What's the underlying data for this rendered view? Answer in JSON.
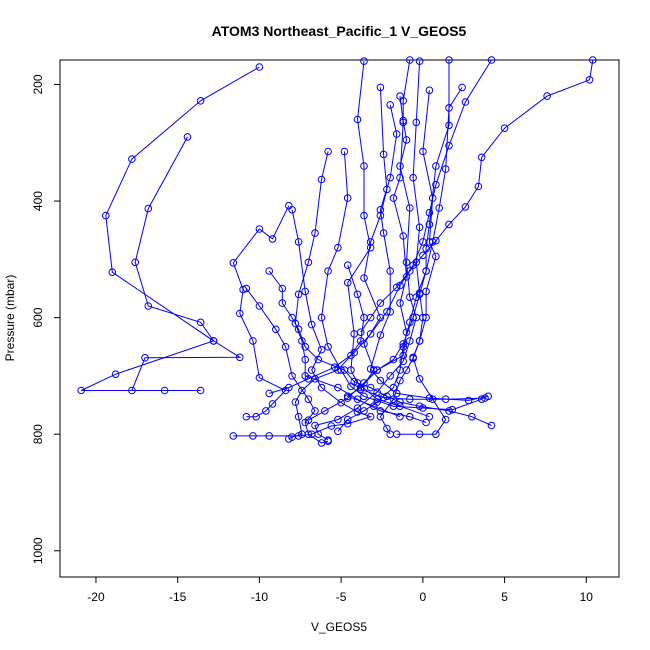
{
  "chart_data": {
    "type": "line",
    "title": "ATOM3 Northeast_Pacific_1 V_GEOS5",
    "xlabel": "V_GEOS5",
    "ylabel": "Pressure (mbar)",
    "xlim": [
      -22.2,
      12.0
    ],
    "ylim": [
      1045,
      158
    ],
    "y_reversed": true,
    "x_ticks": [
      -20,
      -15,
      -10,
      -5,
      0,
      5,
      10
    ],
    "y_ticks": [
      200,
      400,
      600,
      800,
      1000
    ],
    "marker": "open-circle",
    "color": "#0000ff",
    "series": [
      {
        "values": [
          [
            -10.0,
            170
          ],
          [
            -13.6,
            228
          ],
          [
            -17.8,
            328
          ],
          [
            -19.4,
            425
          ],
          [
            -19.0,
            522
          ],
          [
            -12.8,
            640
          ],
          [
            -18.8,
            697
          ],
          [
            -20.9,
            725
          ],
          [
            -13.6,
            725
          ]
        ]
      },
      {
        "values": [
          [
            -14.4,
            290
          ],
          [
            -16.8,
            413
          ],
          [
            -17.6,
            505
          ],
          [
            -16.8,
            580
          ],
          [
            -13.6,
            608
          ],
          [
            -12.8,
            640
          ],
          [
            -11.2,
            668
          ],
          [
            -17.0,
            669
          ],
          [
            -17.8,
            725
          ],
          [
            -15.8,
            725
          ]
        ]
      },
      {
        "values": [
          [
            -8.2,
            408
          ],
          [
            -9.2,
            465
          ],
          [
            -10.0,
            448
          ],
          [
            -11.6,
            506
          ],
          [
            -11.0,
            552
          ],
          [
            -11.2,
            593
          ],
          [
            -10.4,
            640
          ],
          [
            -10.0,
            703
          ],
          [
            -8.4,
            725
          ],
          [
            -9.2,
            748
          ],
          [
            -9.6,
            760
          ],
          [
            -10.2,
            770
          ],
          [
            -10.8,
            770
          ]
        ]
      },
      {
        "values": [
          [
            -8.0,
            415
          ],
          [
            -7.6,
            470
          ],
          [
            -7.2,
            555
          ],
          [
            -6.8,
            612
          ],
          [
            -6.2,
            655
          ],
          [
            -6.8,
            690
          ],
          [
            -6.2,
            720
          ],
          [
            -5.0,
            746
          ],
          [
            -4.0,
            762
          ],
          [
            -3.2,
            770
          ],
          [
            -4.6,
            782
          ],
          [
            -5.6,
            786
          ],
          [
            -6.8,
            800
          ],
          [
            -7.6,
            803
          ],
          [
            -9.4,
            803
          ],
          [
            -10.4,
            803
          ],
          [
            -11.6,
            803
          ]
        ]
      },
      {
        "values": [
          [
            -5.8,
            315
          ],
          [
            -6.2,
            363
          ],
          [
            -6.6,
            455
          ],
          [
            -7.0,
            505
          ],
          [
            -7.6,
            560
          ],
          [
            -7.8,
            610
          ],
          [
            -7.4,
            640
          ],
          [
            -7.2,
            672
          ],
          [
            -7.2,
            700
          ],
          [
            -5.2,
            720
          ],
          [
            -4.0,
            740
          ],
          [
            -2.6,
            760
          ],
          [
            -0.8,
            770
          ],
          [
            0.2,
            780
          ]
        ]
      },
      {
        "values": [
          [
            -4.8,
            315
          ],
          [
            -4.6,
            395
          ],
          [
            -5.2,
            480
          ],
          [
            -5.8,
            520
          ],
          [
            -6.2,
            600
          ],
          [
            -5.8,
            650
          ],
          [
            -5.0,
            690
          ],
          [
            -4.4,
            718
          ],
          [
            -3.6,
            735
          ],
          [
            -1.8,
            752
          ],
          [
            0.0,
            755
          ],
          [
            1.8,
            758
          ],
          [
            3.6,
            740
          ]
        ]
      },
      {
        "values": [
          [
            -3.6,
            160
          ],
          [
            -4.0,
            260
          ],
          [
            -3.6,
            340
          ],
          [
            -3.6,
            425
          ],
          [
            -3.2,
            480
          ],
          [
            -4.6,
            540
          ],
          [
            -4.2,
            628
          ],
          [
            -4.4,
            690
          ],
          [
            -4.0,
            712
          ],
          [
            -2.8,
            740
          ],
          [
            -1.4,
            752
          ],
          [
            0.4,
            770
          ]
        ]
      },
      {
        "values": [
          [
            -2.6,
            205
          ],
          [
            -2.4,
            320
          ],
          [
            -2.2,
            380
          ],
          [
            -2.6,
            425
          ],
          [
            -3.2,
            470
          ],
          [
            -3.6,
            532
          ],
          [
            -2.6,
            600
          ],
          [
            -3.6,
            645
          ],
          [
            -3.0,
            690
          ],
          [
            -3.8,
            723
          ],
          [
            -2.4,
            737
          ],
          [
            -0.8,
            740
          ],
          [
            1.4,
            740
          ],
          [
            3.8,
            738
          ]
        ]
      },
      {
        "values": [
          [
            -2.0,
            235
          ],
          [
            -1.6,
            285
          ],
          [
            -2.0,
            360
          ],
          [
            -2.6,
            415
          ],
          [
            -2.4,
            455
          ],
          [
            -2.0,
            520
          ],
          [
            -2.0,
            590
          ],
          [
            -2.6,
            630
          ],
          [
            -3.2,
            688
          ],
          [
            -2.6,
            708
          ],
          [
            -1.6,
            730
          ],
          [
            0.4,
            738
          ],
          [
            2.8,
            742
          ],
          [
            4.0,
            735
          ]
        ]
      },
      {
        "values": [
          [
            -1.4,
            220
          ],
          [
            -1.2,
            265
          ],
          [
            -1.4,
            360
          ],
          [
            -1.8,
            395
          ],
          [
            -1.2,
            460
          ],
          [
            -1.0,
            530
          ],
          [
            -1.4,
            575
          ],
          [
            -1.0,
            625
          ],
          [
            -1.2,
            665
          ],
          [
            -2.8,
            690
          ],
          [
            -3.8,
            720
          ],
          [
            -4.6,
            735
          ],
          [
            -3.0,
            752
          ],
          [
            -1.4,
            770
          ]
        ]
      },
      {
        "values": [
          [
            -0.8,
            158
          ],
          [
            -1.2,
            228
          ],
          [
            -1.2,
            262
          ],
          [
            -1.0,
            295
          ],
          [
            -1.4,
            340
          ],
          [
            -0.8,
            412
          ],
          [
            -1.0,
            505
          ],
          [
            -0.8,
            565
          ],
          [
            -0.4,
            600
          ],
          [
            -0.8,
            640
          ],
          [
            -1.2,
            675
          ],
          [
            -2.0,
            700
          ],
          [
            -2.8,
            728
          ],
          [
            -4.0,
            755
          ],
          [
            -5.2,
            775
          ],
          [
            -6.6,
            785
          ],
          [
            -6.4,
            800
          ],
          [
            -5.8,
            810
          ]
        ]
      },
      {
        "values": [
          [
            -0.2,
            160
          ],
          [
            -0.4,
            265
          ],
          [
            -0.6,
            360
          ],
          [
            -0.2,
            445
          ],
          [
            -0.4,
            505
          ],
          [
            -0.2,
            558
          ],
          [
            0.0,
            600
          ],
          [
            -0.2,
            640
          ],
          [
            -0.6,
            670
          ],
          [
            -1.0,
            690
          ],
          [
            -1.4,
            708
          ],
          [
            -1.8,
            740
          ],
          [
            -2.6,
            770
          ],
          [
            -2.2,
            790
          ],
          [
            -2.0,
            800
          ]
        ]
      },
      {
        "values": [
          [
            0.4,
            210
          ],
          [
            0.0,
            315
          ],
          [
            0.6,
            395
          ],
          [
            0.4,
            470
          ],
          [
            0.8,
            495
          ],
          [
            0.2,
            555
          ],
          [
            0.2,
            600
          ],
          [
            -0.2,
            640
          ],
          [
            -0.6,
            668
          ],
          [
            -0.2,
            705
          ],
          [
            0.6,
            740
          ],
          [
            1.4,
            775
          ],
          [
            0.8,
            800
          ],
          [
            -0.2,
            800
          ],
          [
            -1.6,
            800
          ]
        ]
      },
      {
        "values": [
          [
            1.6,
            158
          ],
          [
            1.6,
            270
          ],
          [
            0.8,
            340
          ],
          [
            0.4,
            440
          ],
          [
            0.2,
            482
          ],
          [
            0.2,
            520
          ],
          [
            -0.4,
            565
          ],
          [
            -0.8,
            608
          ],
          [
            -1.2,
            650
          ],
          [
            -1.4,
            690
          ],
          [
            -1.8,
            720
          ],
          [
            -2.8,
            745
          ],
          [
            -3.6,
            760
          ],
          [
            -4.6,
            775
          ],
          [
            -5.2,
            795
          ]
        ]
      },
      {
        "values": [
          [
            2.4,
            205
          ],
          [
            1.6,
            240
          ],
          [
            1.4,
            345
          ],
          [
            1.0,
            412
          ],
          [
            0.6,
            470
          ],
          [
            0.2,
            520
          ],
          [
            -0.2,
            560
          ],
          [
            -0.6,
            600
          ],
          [
            -1.2,
            645
          ],
          [
            -1.8,
            672
          ],
          [
            -2.8,
            690
          ],
          [
            -3.6,
            712
          ],
          [
            -4.6,
            738
          ],
          [
            -6.0,
            760
          ],
          [
            -7.0,
            776
          ]
        ]
      },
      {
        "values": [
          [
            4.2,
            158
          ],
          [
            2.6,
            230
          ],
          [
            1.6,
            305
          ],
          [
            0.8,
            372
          ],
          [
            0.4,
            420
          ],
          [
            0.0,
            470
          ],
          [
            -0.6,
            510
          ],
          [
            -1.4,
            545
          ],
          [
            -2.2,
            590
          ],
          [
            -3.2,
            628
          ],
          [
            -4.2,
            660
          ],
          [
            -5.4,
            685
          ],
          [
            -7.0,
            705
          ],
          [
            -8.2,
            720
          ],
          [
            -9.4,
            730
          ]
        ]
      },
      {
        "values": [
          [
            10.4,
            158
          ],
          [
            10.2,
            192
          ],
          [
            7.6,
            220
          ],
          [
            5.0,
            275
          ],
          [
            3.6,
            325
          ],
          [
            3.4,
            375
          ],
          [
            2.6,
            410
          ],
          [
            1.6,
            440
          ],
          [
            0.8,
            468
          ],
          [
            0.0,
            493
          ],
          [
            -0.8,
            520
          ],
          [
            -1.6,
            548
          ],
          [
            -2.6,
            575
          ],
          [
            -3.2,
            600
          ],
          [
            -3.8,
            625
          ]
        ]
      },
      {
        "values": [
          [
            -10.8,
            550
          ],
          [
            -10.0,
            580
          ],
          [
            -9.0,
            620
          ],
          [
            -8.4,
            650
          ],
          [
            -8.0,
            700
          ],
          [
            -7.0,
            740
          ],
          [
            -6.6,
            760
          ],
          [
            -7.2,
            780
          ],
          [
            -7.0,
            800
          ],
          [
            -6.2,
            815
          ],
          [
            -5.8,
            812
          ]
        ]
      },
      {
        "values": [
          [
            -9.4,
            520
          ],
          [
            -8.6,
            550
          ],
          [
            -8.6,
            575
          ],
          [
            -8.0,
            600
          ],
          [
            -7.6,
            620
          ],
          [
            -7.2,
            650
          ],
          [
            -6.4,
            672
          ],
          [
            -4.8,
            690
          ],
          [
            -4.2,
            710
          ],
          [
            -3.2,
            720
          ],
          [
            -2.2,
            735
          ],
          [
            -1.4,
            745
          ],
          [
            -0.2,
            752
          ],
          [
            1.6,
            760
          ],
          [
            3.0,
            770
          ],
          [
            4.2,
            785
          ]
        ]
      },
      {
        "values": [
          [
            -4.6,
            510
          ],
          [
            -4.0,
            560
          ],
          [
            -3.6,
            600
          ],
          [
            -3.8,
            640
          ],
          [
            -4.4,
            665
          ],
          [
            -5.2,
            690
          ],
          [
            -6.6,
            705
          ],
          [
            -7.4,
            725
          ],
          [
            -7.8,
            745
          ],
          [
            -7.6,
            770
          ],
          [
            -7.4,
            800
          ],
          [
            -8.0,
            805
          ],
          [
            -8.2,
            808
          ]
        ]
      }
    ]
  }
}
